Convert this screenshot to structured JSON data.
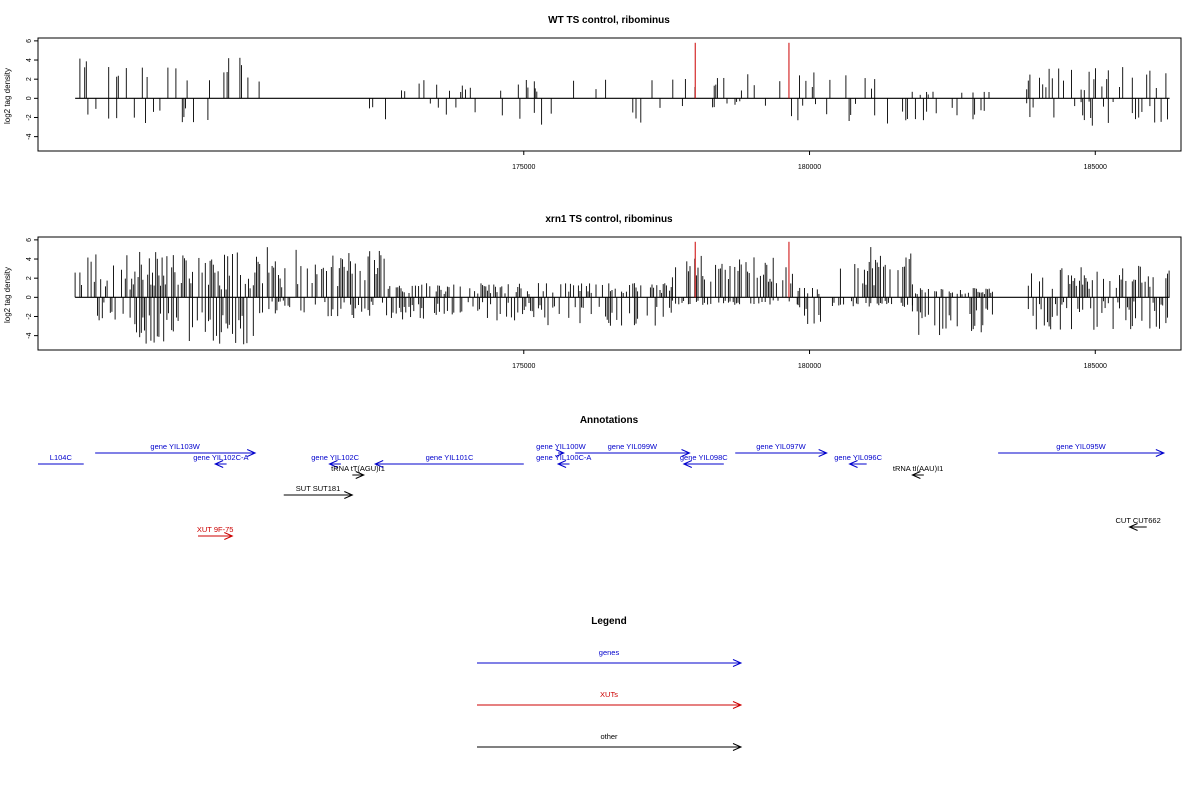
{
  "chart_data": [
    {
      "type": "bar",
      "title": "WT TS control, ribominus",
      "xlabel": "",
      "ylabel": "log2 tag density",
      "xlim": [
        166500,
        186500
      ],
      "ylim": [
        -5.5,
        6.3
      ],
      "yticks": [
        "6",
        "4",
        "2",
        "0",
        "-2",
        "-4"
      ],
      "xticks": [
        "175000",
        "180000",
        "185000"
      ],
      "grid": false,
      "segments": [
        {
          "from": 167150,
          "to": 170400,
          "pos": [
            1.5,
            4.5
          ],
          "neg": [
            0.8,
            2.7
          ],
          "density": 0.22
        },
        {
          "from": 172300,
          "to": 175200,
          "pos": [
            0.6,
            2.0
          ],
          "neg": [
            0.5,
            2.2
          ],
          "density": 0.1
        },
        {
          "from": 175200,
          "to": 177800,
          "pos": [
            0.5,
            2.0
          ],
          "neg": [
            0.8,
            3.3
          ],
          "density": 0.12
        },
        {
          "from": 177800,
          "to": 179600,
          "pos": [
            0.6,
            3.2
          ],
          "neg": [
            0.3,
            1.0
          ],
          "density": 0.08
        },
        {
          "from": 179600,
          "to": 181600,
          "pos": [
            0.5,
            3.0
          ],
          "neg": [
            0.5,
            2.8
          ],
          "density": 0.14
        },
        {
          "from": 181600,
          "to": 183200,
          "pos": [
            0.3,
            1.0
          ],
          "neg": [
            0.8,
            2.4
          ],
          "density": 0.22
        },
        {
          "from": 183800,
          "to": 186300,
          "pos": [
            0.8,
            3.3
          ],
          "neg": [
            0.3,
            3.0
          ],
          "density": 0.2
        }
      ],
      "highlights": [
        {
          "x": 178000,
          "y": 5.8,
          "color": "#cc0000"
        },
        {
          "x": 179640,
          "y": 5.8,
          "color": "#cc0000"
        }
      ]
    },
    {
      "type": "bar",
      "title": "xrn1 TS control, ribominus",
      "xlabel": "",
      "ylabel": "log2 tag density",
      "xlim": [
        166500,
        186500
      ],
      "ylim": [
        -5.5,
        6.3
      ],
      "yticks": [
        "6",
        "4",
        "2",
        "0",
        "-2",
        "-4"
      ],
      "xticks": [
        "175000",
        "180000",
        "185000"
      ],
      "grid": false,
      "segments": [
        {
          "from": 167150,
          "to": 168000,
          "pos": [
            0.8,
            4.5
          ],
          "neg": [
            0.5,
            2.7
          ],
          "density": 0.45
        },
        {
          "from": 168000,
          "to": 170400,
          "pos": [
            0.8,
            4.8
          ],
          "neg": [
            1.5,
            5.0
          ],
          "density": 0.65
        },
        {
          "from": 170400,
          "to": 172600,
          "pos": [
            1.0,
            5.3
          ],
          "neg": [
            0.3,
            2.2
          ],
          "density": 0.55
        },
        {
          "from": 172600,
          "to": 175200,
          "pos": [
            0.3,
            1.5
          ],
          "neg": [
            0.5,
            2.5
          ],
          "density": 0.55
        },
        {
          "from": 175200,
          "to": 177600,
          "pos": [
            0.3,
            1.5
          ],
          "neg": [
            0.8,
            3.0
          ],
          "density": 0.5
        },
        {
          "from": 177600,
          "to": 179800,
          "pos": [
            1.0,
            4.4
          ],
          "neg": [
            0.3,
            0.8
          ],
          "density": 0.55
        },
        {
          "from": 179800,
          "to": 180200,
          "pos": [
            0.3,
            1.0
          ],
          "neg": [
            0.8,
            2.8
          ],
          "density": 0.55
        },
        {
          "from": 180400,
          "to": 181800,
          "pos": [
            1.0,
            5.6
          ],
          "neg": [
            0.3,
            1.0
          ],
          "density": 0.55
        },
        {
          "from": 181800,
          "to": 183200,
          "pos": [
            0.3,
            1.0
          ],
          "neg": [
            1.0,
            4.0
          ],
          "density": 0.55
        },
        {
          "from": 183800,
          "to": 186300,
          "pos": [
            0.8,
            3.3
          ],
          "neg": [
            0.3,
            3.5
          ],
          "density": 0.55
        }
      ],
      "highlights": [
        {
          "x": 178000,
          "y": 5.8,
          "color": "#cc0000"
        },
        {
          "x": 179640,
          "y": 5.8,
          "color": "#cc0000"
        }
      ]
    }
  ],
  "annotations": {
    "title": "Annotations",
    "items": [
      {
        "label": "L104C",
        "from": 166500,
        "to": 167300,
        "dir": "none",
        "color": "#0000cc",
        "row": 1
      },
      {
        "label": "gene YIL103W",
        "from": 167500,
        "to": 170300,
        "dir": "right",
        "color": "#0000cc",
        "row": 0
      },
      {
        "label": "gene YIL102C-A",
        "from": 169600,
        "to": 169800,
        "dir": "left",
        "color": "#0000cc",
        "row": 1
      },
      {
        "label": "gene YIL102C",
        "from": 171600,
        "to": 171800,
        "dir": "left",
        "color": "#0000cc",
        "row": 1
      },
      {
        "label": "tRNA tT(AGU)I1",
        "from": 172000,
        "to": 172200,
        "dir": "right",
        "color": "#000000",
        "row": 2
      },
      {
        "label": "gene YIL101C",
        "from": 172400,
        "to": 175000,
        "dir": "left",
        "color": "#0000cc",
        "row": 1
      },
      {
        "label": "gene YIL100W",
        "from": 175600,
        "to": 175700,
        "dir": "right",
        "color": "#0000cc",
        "row": 0
      },
      {
        "label": "gene YIL100C-A",
        "from": 175600,
        "to": 175800,
        "dir": "left",
        "color": "#0000cc",
        "row": 1
      },
      {
        "label": "gene YIL099W",
        "from": 175900,
        "to": 177900,
        "dir": "right",
        "color": "#0000cc",
        "row": 0
      },
      {
        "label": "gene YIL098C",
        "from": 177800,
        "to": 178500,
        "dir": "left",
        "color": "#0000cc",
        "row": 1
      },
      {
        "label": "gene YIL097W",
        "from": 178700,
        "to": 180300,
        "dir": "right",
        "color": "#0000cc",
        "row": 0
      },
      {
        "label": "gene YIL096C",
        "from": 180700,
        "to": 181000,
        "dir": "left",
        "color": "#0000cc",
        "row": 1
      },
      {
        "label": "tRNA tI(AAU)I1",
        "from": 181800,
        "to": 182000,
        "dir": "left",
        "color": "#000000",
        "row": 2
      },
      {
        "label": "gene YIL095W",
        "from": 183300,
        "to": 186200,
        "dir": "right",
        "color": "#0000cc",
        "row": 0
      },
      {
        "label": "SUT SUT181",
        "from": 170800,
        "to": 172000,
        "dir": "right",
        "color": "#000000",
        "row": 3
      },
      {
        "label": "XUT 9F-75",
        "from": 169300,
        "to": 169900,
        "dir": "right",
        "color": "#cc0000",
        "row": 5
      },
      {
        "label": "CUT CUT662",
        "from": 185600,
        "to": 185900,
        "dir": "left",
        "color": "#000000",
        "row": 4
      }
    ]
  },
  "legend": {
    "title": "Legend",
    "items": [
      {
        "label": "genes",
        "color": "#0000cc"
      },
      {
        "label": "XUTs",
        "color": "#cc0000"
      },
      {
        "label": "other",
        "color": "#000000"
      }
    ]
  }
}
